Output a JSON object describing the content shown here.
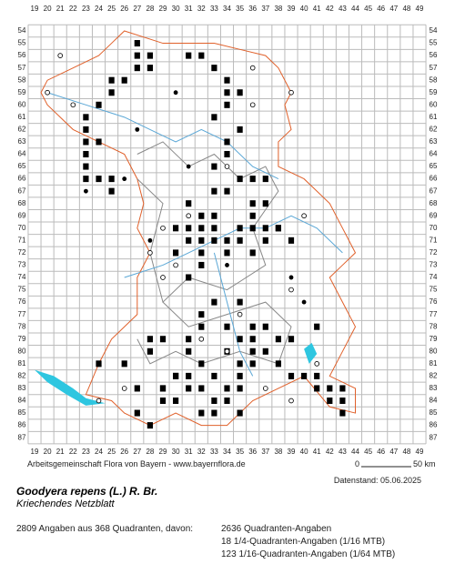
{
  "map": {
    "x_labels": [
      19,
      20,
      21,
      22,
      23,
      24,
      25,
      26,
      27,
      28,
      29,
      30,
      31,
      32,
      33,
      34,
      35,
      36,
      37,
      38,
      39,
      40,
      41,
      42,
      43,
      44,
      45,
      46,
      47,
      48,
      49
    ],
    "y_labels": [
      54,
      55,
      56,
      57,
      58,
      59,
      60,
      61,
      62,
      63,
      64,
      65,
      66,
      67,
      68,
      69,
      70,
      71,
      72,
      73,
      74,
      75,
      76,
      77,
      78,
      79,
      80,
      81,
      82,
      83,
      84,
      85,
      86,
      87
    ],
    "credit": "Arbeitsgemeinschaft Flora von Bayern - www.bayernflora.de",
    "scale_start": "0",
    "scale_end": "50 km",
    "date": "Datenstand: 05.06.2025",
    "title": "Goodyera repens (L.) R. Br.",
    "subtitle": "Kriechendes Netzblatt",
    "summary": "2809 Angaben aus 368 Quadranten, davon:",
    "counts": [
      "2636 Quadranten-Angaben",
      "18 1/4-Quadranten-Angaben (1/16 MTB)",
      "123 1/16-Quadranten-Angaben (1/64 MTB)"
    ]
  }
}
